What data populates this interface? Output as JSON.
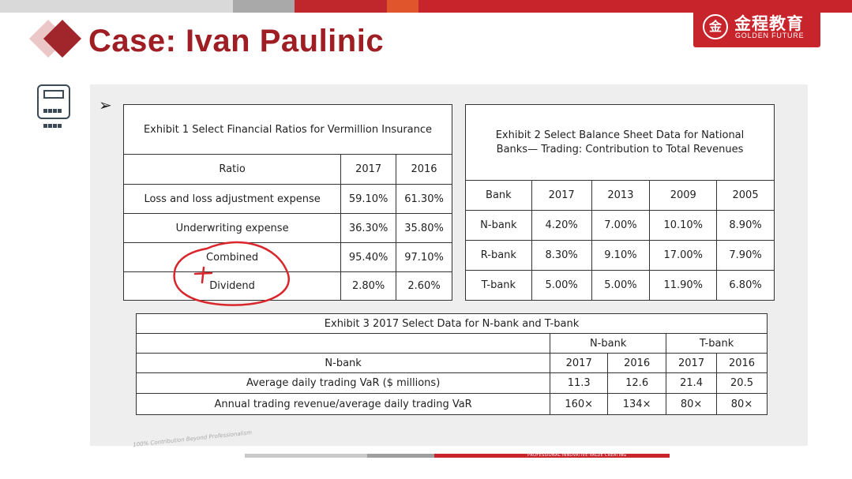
{
  "title": "Case: Ivan Paulinic",
  "logo": {
    "cn": "金程教育",
    "en": "GOLDEN FUTURE",
    "mark": "金"
  },
  "colors": {
    "brand_red": "#c8242b",
    "title_red": "#9e1e24",
    "panel_gray": "#eeeeee"
  },
  "icons": {
    "calculator": "calculator-icon",
    "arrow": "pointer-arrow-icon"
  },
  "exhibit1": {
    "caption": "Exhibit 1 Select Financial Ratios for Vermillion Insurance",
    "headers": [
      "Ratio",
      "2017",
      "2016"
    ],
    "rows": [
      [
        "Loss and loss adjustment expense",
        "59.10%",
        "61.30%"
      ],
      [
        "Underwriting expense",
        "36.30%",
        "35.80%"
      ],
      [
        "Combined",
        "95.40%",
        "97.10%"
      ],
      [
        "Dividend",
        "2.80%",
        "2.60%"
      ]
    ]
  },
  "exhibit2": {
    "caption": "Exhibit 2 Select Balance Sheet Data for National Banks— Trading: Contribution to Total Revenues",
    "headers": [
      "Bank",
      "2017",
      "2013",
      "2009",
      "2005"
    ],
    "rows": [
      [
        "N-bank",
        "4.20%",
        "7.00%",
        "10.10%",
        "8.90%"
      ],
      [
        "R-bank",
        "8.30%",
        "9.10%",
        "17.00%",
        "7.90%"
      ],
      [
        "T-bank",
        "5.00%",
        "5.00%",
        "11.90%",
        "6.80%"
      ]
    ]
  },
  "exhibit3": {
    "caption": "Exhibit 3 2017 Select Data for N-bank and T-bank",
    "group_headers": [
      "N-bank",
      "T-bank"
    ],
    "row_header": "N-bank",
    "years": [
      "2017",
      "2016",
      "2017",
      "2016"
    ],
    "rows": [
      [
        "Average daily trading VaR ($ millions)",
        "11.3",
        "12.6",
        "21.4",
        "20.5"
      ],
      [
        "Annual trading revenue/average daily trading VaR",
        "160×",
        "134×",
        "80×",
        "80×"
      ]
    ]
  },
  "footer": {
    "slogan": "100% Contribution Beyond Professionalism",
    "tag": "PROFESSIONAL·INNOVATIVE·VALUE CREATING"
  }
}
